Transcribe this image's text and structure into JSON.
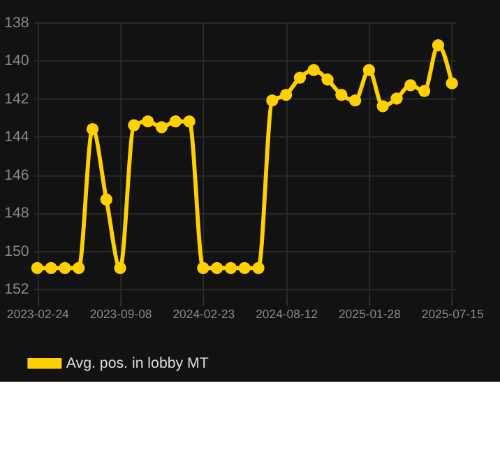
{
  "chart_data": {
    "type": "line",
    "categories": [
      "2023-02-24",
      null,
      null,
      null,
      null,
      null,
      "2023-09-08",
      null,
      null,
      null,
      null,
      null,
      "2024-02-23",
      null,
      null,
      null,
      null,
      null,
      "2024-08-12",
      null,
      null,
      null,
      null,
      null,
      "2025-01-28",
      null,
      null,
      null,
      null,
      null,
      "2025-07-15"
    ],
    "series": [
      {
        "name": "Avg. pos. in lobby MT",
        "color": "#ffd000",
        "values": [
          150.9,
          150.9,
          150.9,
          150.9,
          143.6,
          147.3,
          150.9,
          143.4,
          143.2,
          143.5,
          143.2,
          143.2,
          150.9,
          150.9,
          150.9,
          150.9,
          150.9,
          142.1,
          141.8,
          140.9,
          140.5,
          141.0,
          141.8,
          142.1,
          140.5,
          142.4,
          142.0,
          141.3,
          141.6,
          139.2,
          141.2
        ]
      }
    ],
    "ylim": [
      152.5,
      138
    ],
    "yticks": [
      138,
      140,
      142,
      144,
      146,
      148,
      150,
      152
    ],
    "grid": true,
    "legend": "bottom",
    "marker": "circle",
    "line_style": "solid"
  }
}
